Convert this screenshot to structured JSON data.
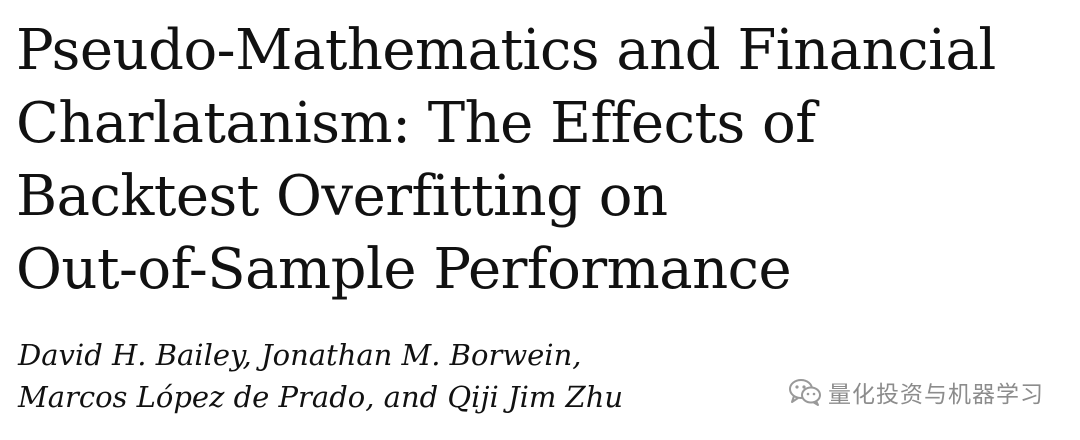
{
  "paper": {
    "title_lines": [
      "Pseudo-Mathematics and Financial",
      "Charlatanism: The Effects of",
      "Backtest Overfitting on",
      "Out-of-Sample Performance"
    ],
    "author_lines": [
      "David H. Bailey, Jonathan M. Borwein,",
      "Marcos López de Prado, and Qiji Jim Zhu"
    ]
  },
  "watermark": {
    "icon": "wechat-icon",
    "text": "量化投资与机器学习"
  }
}
